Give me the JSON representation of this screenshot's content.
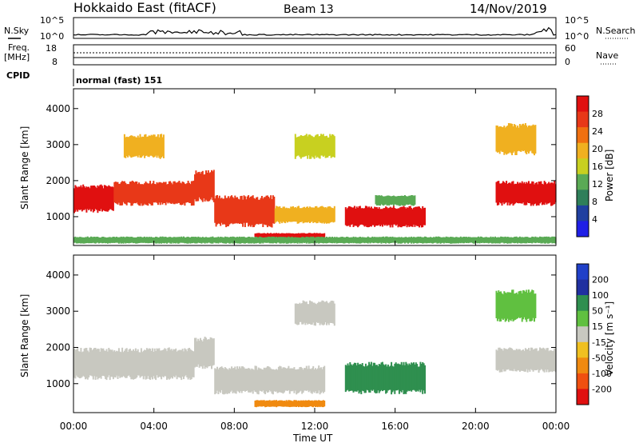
{
  "header": {
    "station": "Hokkaido East (fitACF)",
    "beam": "Beam 13",
    "date": "14/Nov/2019"
  },
  "top_panels": {
    "nsky_label": "N.Sky",
    "nsky_ticks": [
      "10^5",
      "10^0"
    ],
    "nsearch_label": "N.Search",
    "nsearch_ticks": [
      "10^5",
      "10^0"
    ],
    "freq_label": "Freq.",
    "freq_unit": "[MHz]",
    "freq_ticks": [
      "18",
      "8"
    ],
    "nave_label": "Nave",
    "nave_ticks": [
      "60",
      "0"
    ],
    "cpid_label": "CPID",
    "cpid_text": "normal (fast) 151"
  },
  "colors": {
    "power_scale": [
      "#1f1fe6",
      "#2040a0",
      "#2f7f5a",
      "#5aaa55",
      "#c8d020",
      "#f0b020",
      "#f07010",
      "#e83818",
      "#e01010"
    ],
    "velocity_scale": [
      "#e01010",
      "#f05010",
      "#f08a10",
      "#f0c020",
      "#c8c8c0",
      "#60c040",
      "#2f8f4f",
      "#2030a0",
      "#2040c8"
    ],
    "gray": "#c8c8c0"
  },
  "chart_data": [
    {
      "type": "heatmap",
      "name": "power",
      "ylabel": "Slant Range [km]",
      "yticks": [
        1000,
        2000,
        3000,
        4000
      ],
      "ylim": [
        200,
        4550
      ],
      "xlim": [
        0,
        24
      ],
      "colorbar_label": "Power [dB]",
      "colorbar_ticks": [
        "28",
        "24",
        "20",
        "16",
        "12",
        "8",
        "4"
      ],
      "regions": [
        {
          "x": [
            0,
            2.0
          ],
          "y": [
            1100,
            1900
          ],
          "value": 28
        },
        {
          "x": [
            2.0,
            6.0
          ],
          "y": [
            1300,
            2000
          ],
          "value": 26
        },
        {
          "x": [
            6.0,
            7.0
          ],
          "y": [
            1400,
            2300
          ],
          "value": 24
        },
        {
          "x": [
            2.5,
            4.5
          ],
          "y": [
            2600,
            3300
          ],
          "value": 20
        },
        {
          "x": [
            7.0,
            10.0
          ],
          "y": [
            700,
            1600
          ],
          "value": 24
        },
        {
          "x": [
            10.0,
            13.0
          ],
          "y": [
            800,
            1300
          ],
          "value": 20
        },
        {
          "x": [
            9.0,
            12.5
          ],
          "y": [
            400,
            550
          ],
          "value": 28
        },
        {
          "x": [
            13.5,
            17.5
          ],
          "y": [
            700,
            1300
          ],
          "value": 28
        },
        {
          "x": [
            15.0,
            17.0
          ],
          "y": [
            1300,
            1600
          ],
          "value": 12
        },
        {
          "x": [
            11.0,
            13.0
          ],
          "y": [
            2600,
            3300
          ],
          "value": 16
        },
        {
          "x": [
            21.0,
            24.0
          ],
          "y": [
            1300,
            2000
          ],
          "value": 28
        },
        {
          "x": [
            21.0,
            23.0
          ],
          "y": [
            2700,
            3600
          ],
          "value": 20
        },
        {
          "x": [
            0,
            24.0
          ],
          "y": [
            250,
            450
          ],
          "value": 12
        }
      ]
    },
    {
      "type": "heatmap",
      "name": "velocity",
      "ylabel": "Slant Range [km]",
      "xlabel": "Time UT",
      "xticks": [
        "00:00",
        "04:00",
        "08:00",
        "12:00",
        "16:00",
        "20:00",
        "00:00"
      ],
      "yticks": [
        1000,
        2000,
        3000,
        4000
      ],
      "ylim": [
        200,
        4550
      ],
      "xlim": [
        0,
        24
      ],
      "colorbar_label": "Velocity [m s⁻¹]",
      "colorbar_ticks": [
        "200",
        "100",
        "50",
        "15",
        "-15",
        "-50",
        "-100",
        "-200"
      ],
      "regions": [
        {
          "x": [
            0,
            6.0
          ],
          "y": [
            1100,
            2000
          ],
          "value": 0
        },
        {
          "x": [
            6.0,
            7.0
          ],
          "y": [
            1400,
            2300
          ],
          "value": 0
        },
        {
          "x": [
            7.0,
            12.5
          ],
          "y": [
            700,
            1500
          ],
          "value": 0
        },
        {
          "x": [
            9.0,
            12.5
          ],
          "y": [
            350,
            550
          ],
          "value": -60
        },
        {
          "x": [
            13.5,
            17.5
          ],
          "y": [
            700,
            1600
          ],
          "value": 60
        },
        {
          "x": [
            21.0,
            24.0
          ],
          "y": [
            1300,
            2000
          ],
          "value": 0
        },
        {
          "x": [
            21.0,
            23.0
          ],
          "y": [
            2700,
            3600
          ],
          "value": 40
        },
        {
          "x": [
            11.0,
            13.0
          ],
          "y": [
            2600,
            3300
          ],
          "value": 0
        }
      ]
    }
  ]
}
